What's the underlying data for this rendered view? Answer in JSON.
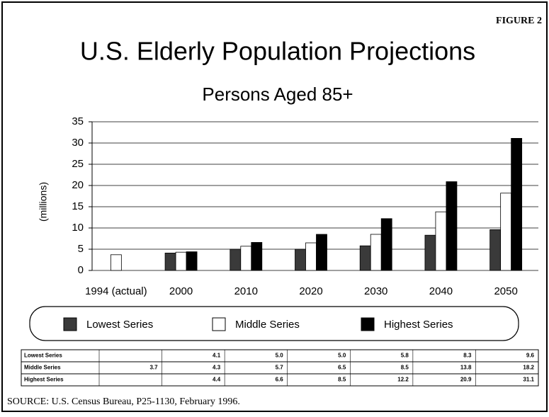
{
  "figure_label": "FIGURE 2",
  "source": "SOURCE: U.S. Census Bureau, P25-1130, February 1996.",
  "chart_data": {
    "type": "bar",
    "title": "U.S. Elderly Population Projections",
    "subtitle": "Persons Aged 85+",
    "y_label": "(millions)",
    "categories": [
      "1994 (actual)",
      "2000",
      "2010",
      "2020",
      "2030",
      "2040",
      "2050"
    ],
    "series": [
      {
        "name": "Lowest Series",
        "color": "#3a3a3a",
        "values": [
          null,
          4.1,
          5.0,
          5.0,
          5.8,
          8.3,
          9.6
        ],
        "value_labels": [
          null,
          "4.1",
          "5.0",
          "5.0",
          "5.8",
          "8.3",
          "9.6"
        ]
      },
      {
        "name": "Middle Series",
        "color": "#ffffff",
        "values": [
          3.7,
          4.3,
          5.7,
          6.5,
          8.5,
          13.8,
          18.2
        ],
        "value_labels": [
          "3.7",
          "4.3",
          "5.7",
          "6.5",
          "8.5",
          "13.8",
          "18.2"
        ]
      },
      {
        "name": "Highest Series",
        "color": "#000000",
        "values": [
          null,
          4.4,
          6.6,
          8.5,
          12.2,
          20.9,
          31.1
        ],
        "value_labels": [
          null,
          "4.4",
          "6.6",
          "8.5",
          "12.2",
          "20.9",
          "31.1"
        ]
      }
    ],
    "ylim": [
      0,
      35
    ],
    "yticks": [
      0,
      5,
      10,
      15,
      20,
      25,
      30,
      35
    ],
    "grid": true
  }
}
